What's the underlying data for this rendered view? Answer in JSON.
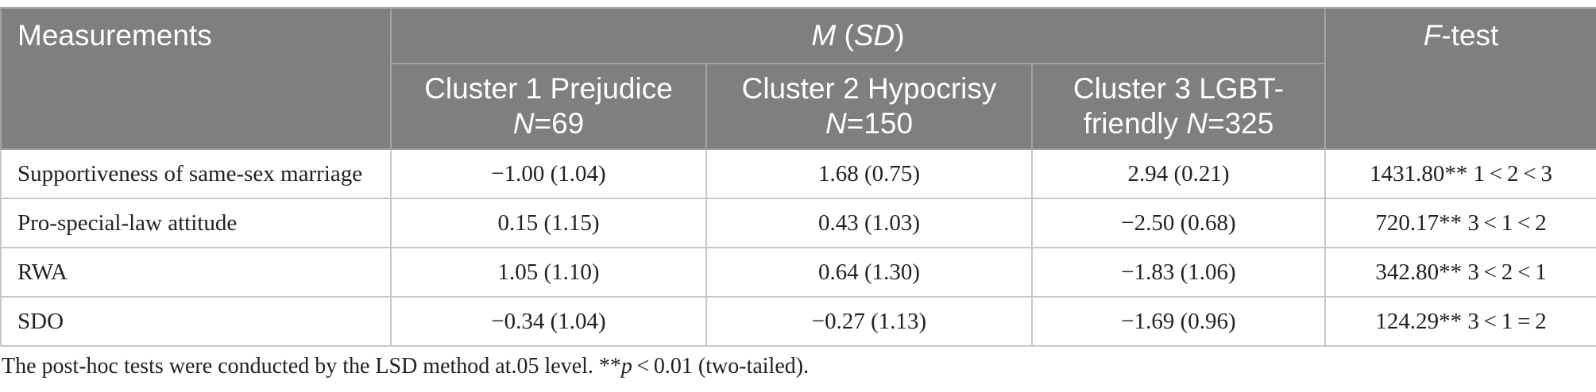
{
  "table": {
    "header": {
      "measurements": "Measurements",
      "mean_sd": [
        "M",
        " (",
        "SD",
        ")"
      ],
      "ftest": [
        "F",
        "-test"
      ],
      "clusters": [
        {
          "label": "Cluster 1 Prejudice",
          "n_symbol": "N",
          "n": "=69"
        },
        {
          "label": "Cluster 2 Hypocrisy",
          "n_symbol": "N",
          "n": "=150"
        },
        {
          "label": "Cluster 3 LGBT-friendly",
          "n_symbol": "N",
          "n": "=325"
        }
      ]
    },
    "rows": [
      [
        "Supportiveness of same-sex marriage",
        "−1.00 (1.04)",
        "1.68 (0.75)",
        "2.94 (0.21)",
        "1431.80** 1 < 2 < 3"
      ],
      [
        "Pro-special-law attitude",
        "0.15 (1.15)",
        "0.43 (1.03)",
        "−2.50 (0.68)",
        "720.17** 3 < 1 < 2"
      ],
      [
        "RWA",
        "1.05 (1.10)",
        "0.64 (1.30)",
        "−1.83 (1.06)",
        "342.80** 3 < 2 < 1"
      ],
      [
        "SDO",
        "−0.34 (1.04)",
        "−0.27 (1.13)",
        "−1.69 (0.96)",
        "124.29** 3 < 1 = 2"
      ]
    ],
    "note": [
      "The post-hoc tests were conducted by the LSD method at.05 level. **",
      "p",
      " < 0.01 (two-tailed)."
    ]
  }
}
